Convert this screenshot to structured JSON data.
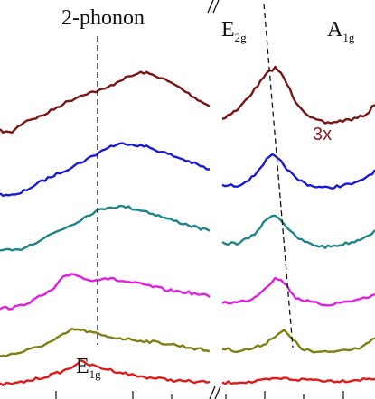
{
  "chart_data": {
    "type": "line",
    "title": "",
    "xlabel": "",
    "ylabel": "",
    "axis_break": true,
    "grid": false,
    "legend": "none",
    "annotations": [
      {
        "id": "two_phonon",
        "text": "2-phonon"
      },
      {
        "id": "e2g",
        "base": "E",
        "sub": "2g"
      },
      {
        "id": "a1g",
        "base": "A",
        "sub": "1g"
      },
      {
        "id": "scale",
        "text": "3x",
        "color": "#8b1a1a"
      },
      {
        "id": "e1g",
        "base": "E",
        "sub": "1g"
      }
    ],
    "series": [
      {
        "color": "#7a1515",
        "left": [
          [
            0,
            0.38
          ],
          [
            0.05,
            0.36
          ],
          [
            0.12,
            0.46
          ],
          [
            0.2,
            0.5
          ],
          [
            0.3,
            0.6
          ],
          [
            0.4,
            0.68
          ],
          [
            0.5,
            0.72
          ],
          [
            0.58,
            0.8
          ],
          [
            0.68,
            0.86
          ],
          [
            0.76,
            0.82
          ],
          [
            0.85,
            0.74
          ],
          [
            0.92,
            0.66
          ],
          [
            1,
            0.58
          ]
        ],
        "right": [
          [
            0,
            0.48
          ],
          [
            0.1,
            0.55
          ],
          [
            0.2,
            0.7
          ],
          [
            0.3,
            0.86
          ],
          [
            0.35,
            0.9
          ],
          [
            0.4,
            0.82
          ],
          [
            0.48,
            0.62
          ],
          [
            0.58,
            0.48
          ],
          [
            0.68,
            0.44
          ],
          [
            0.78,
            0.46
          ],
          [
            0.88,
            0.48
          ],
          [
            0.95,
            0.52
          ],
          [
            1,
            0.6
          ]
        ]
      },
      {
        "color": "#1a1ad6",
        "left": [
          [
            0,
            0.31
          ],
          [
            0.08,
            0.3
          ],
          [
            0.16,
            0.38
          ],
          [
            0.25,
            0.46
          ],
          [
            0.35,
            0.54
          ],
          [
            0.44,
            0.62
          ],
          [
            0.52,
            0.7
          ],
          [
            0.6,
            0.73
          ],
          [
            0.7,
            0.7
          ],
          [
            0.8,
            0.64
          ],
          [
            0.9,
            0.58
          ],
          [
            1,
            0.51
          ]
        ],
        "right": [
          [
            0,
            0.38
          ],
          [
            0.1,
            0.38
          ],
          [
            0.2,
            0.45
          ],
          [
            0.28,
            0.58
          ],
          [
            0.33,
            0.63
          ],
          [
            0.38,
            0.58
          ],
          [
            0.48,
            0.44
          ],
          [
            0.58,
            0.38
          ],
          [
            0.68,
            0.36
          ],
          [
            0.78,
            0.38
          ],
          [
            0.88,
            0.4
          ],
          [
            1,
            0.5
          ]
        ]
      },
      {
        "color": "#1f8585",
        "left": [
          [
            0,
            0.24
          ],
          [
            0.08,
            0.24
          ],
          [
            0.16,
            0.3
          ],
          [
            0.25,
            0.38
          ],
          [
            0.35,
            0.46
          ],
          [
            0.44,
            0.55
          ],
          [
            0.52,
            0.6
          ],
          [
            0.6,
            0.6
          ],
          [
            0.7,
            0.56
          ],
          [
            0.8,
            0.5
          ],
          [
            0.9,
            0.45
          ],
          [
            1,
            0.4
          ]
        ],
        "right": [
          [
            0,
            0.3
          ],
          [
            0.1,
            0.3
          ],
          [
            0.2,
            0.36
          ],
          [
            0.28,
            0.48
          ],
          [
            0.33,
            0.54
          ],
          [
            0.38,
            0.5
          ],
          [
            0.48,
            0.35
          ],
          [
            0.58,
            0.29
          ],
          [
            0.68,
            0.27
          ],
          [
            0.78,
            0.29
          ],
          [
            0.88,
            0.32
          ],
          [
            1,
            0.4
          ]
        ]
      },
      {
        "color": "#e01ee0",
        "left": [
          [
            0,
            0.15
          ],
          [
            0.08,
            0.16
          ],
          [
            0.16,
            0.22
          ],
          [
            0.25,
            0.3
          ],
          [
            0.3,
            0.4
          ],
          [
            0.35,
            0.44
          ],
          [
            0.42,
            0.38
          ],
          [
            0.5,
            0.4
          ],
          [
            0.6,
            0.37
          ],
          [
            0.7,
            0.34
          ],
          [
            0.8,
            0.3
          ],
          [
            0.9,
            0.28
          ],
          [
            1,
            0.25
          ]
        ],
        "right": [
          [
            0,
            0.2
          ],
          [
            0.1,
            0.2
          ],
          [
            0.2,
            0.23
          ],
          [
            0.28,
            0.32
          ],
          [
            0.35,
            0.4
          ],
          [
            0.4,
            0.37
          ],
          [
            0.48,
            0.24
          ],
          [
            0.58,
            0.2
          ],
          [
            0.68,
            0.18
          ],
          [
            0.78,
            0.2
          ],
          [
            0.88,
            0.22
          ],
          [
            1,
            0.26
          ]
        ]
      },
      {
        "color": "#7f7f14",
        "left": [
          [
            0,
            0.08
          ],
          [
            0.08,
            0.1
          ],
          [
            0.16,
            0.14
          ],
          [
            0.25,
            0.2
          ],
          [
            0.3,
            0.25
          ],
          [
            0.35,
            0.3
          ],
          [
            0.42,
            0.28
          ],
          [
            0.5,
            0.24
          ],
          [
            0.6,
            0.22
          ],
          [
            0.7,
            0.2
          ],
          [
            0.8,
            0.18
          ],
          [
            0.9,
            0.15
          ],
          [
            1,
            0.12
          ]
        ],
        "right": [
          [
            0,
            0.14
          ],
          [
            0.1,
            0.12
          ],
          [
            0.2,
            0.14
          ],
          [
            0.28,
            0.18
          ],
          [
            0.34,
            0.24
          ],
          [
            0.4,
            0.29
          ],
          [
            0.44,
            0.24
          ],
          [
            0.52,
            0.14
          ],
          [
            0.6,
            0.11
          ],
          [
            0.7,
            0.11
          ],
          [
            0.8,
            0.13
          ],
          [
            0.9,
            0.15
          ],
          [
            1,
            0.22
          ]
        ]
      },
      {
        "color": "#e01a1a",
        "left": [
          [
            0,
            0.03
          ],
          [
            0.08,
            0.04
          ],
          [
            0.16,
            0.07
          ],
          [
            0.25,
            0.11
          ],
          [
            0.33,
            0.16
          ],
          [
            0.38,
            0.22
          ],
          [
            0.45,
            0.18
          ],
          [
            0.55,
            0.14
          ],
          [
            0.65,
            0.1
          ],
          [
            0.75,
            0.08
          ],
          [
            0.85,
            0.06
          ],
          [
            0.95,
            0.05
          ],
          [
            1,
            0.05
          ]
        ],
        "right": [
          [
            0,
            0.04
          ],
          [
            0.1,
            0.05
          ],
          [
            0.2,
            0.05
          ],
          [
            0.3,
            0.07
          ],
          [
            0.4,
            0.08
          ],
          [
            0.5,
            0.07
          ],
          [
            0.6,
            0.07
          ],
          [
            0.7,
            0.06
          ],
          [
            0.8,
            0.06
          ],
          [
            0.9,
            0.07
          ],
          [
            1,
            0.08
          ]
        ]
      }
    ]
  }
}
